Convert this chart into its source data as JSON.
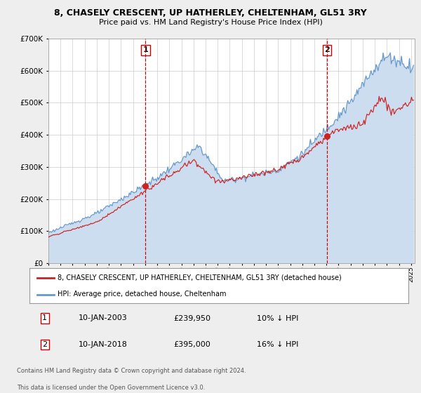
{
  "title": "8, CHASELY CRESCENT, UP HATHERLEY, CHELTENHAM, GL51 3RY",
  "subtitle": "Price paid vs. HM Land Registry's House Price Index (HPI)",
  "ylim": [
    0,
    700000
  ],
  "yticks": [
    0,
    100000,
    200000,
    300000,
    400000,
    500000,
    600000,
    700000
  ],
  "xlim_start": 1995.0,
  "xlim_end": 2025.3,
  "hpi_color": "#6699cc",
  "hpi_fill_color": "#ccddf0",
  "price_color": "#cc2222",
  "marker_color": "#cc2222",
  "vline_color": "#cc0000",
  "sale1_x": 2003.036,
  "sale1_y": 239950,
  "sale2_x": 2018.036,
  "sale2_y": 395000,
  "legend1_label": "8, CHASELY CRESCENT, UP HATHERLEY, CHELTENHAM, GL51 3RY (detached house)",
  "legend2_label": "HPI: Average price, detached house, Cheltenham",
  "table_row1": [
    "1",
    "10-JAN-2003",
    "£239,950",
    "10% ↓ HPI"
  ],
  "table_row2": [
    "2",
    "10-JAN-2018",
    "£395,000",
    "16% ↓ HPI"
  ],
  "footer1": "Contains HM Land Registry data © Crown copyright and database right 2024.",
  "footer2": "This data is licensed under the Open Government Licence v3.0.",
  "bg_color": "#eeeeee",
  "plot_bg_color": "#ffffff",
  "grid_color": "#cccccc"
}
